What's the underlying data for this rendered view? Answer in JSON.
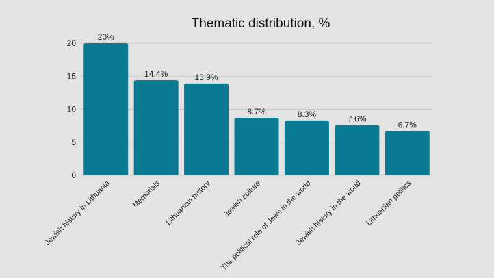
{
  "chart_data": {
    "type": "bar",
    "title": "Thematic distribution, %",
    "xlabel": "",
    "ylabel": "",
    "categories": [
      "Jewish history in Lithuania",
      "Memorials",
      "Lithuanian history",
      "Jewish culture",
      "The political role of Jews in the world",
      "Jewish history in the world",
      "Lithuanian politics"
    ],
    "values": [
      20,
      14.4,
      13.9,
      8.7,
      8.3,
      7.6,
      6.7
    ],
    "data_labels": [
      "20%",
      "14.4%",
      "13.9%",
      "8.7%",
      "8.3%",
      "7.6%",
      "6.7%"
    ],
    "ylim": [
      0,
      20
    ],
    "yticks": [
      0,
      5,
      10,
      15,
      20
    ],
    "grid": true,
    "legend": "none",
    "colors": {
      "bar": "#0b7b93",
      "background": "#e3e3e3",
      "grid": "#c9c9c9"
    }
  }
}
